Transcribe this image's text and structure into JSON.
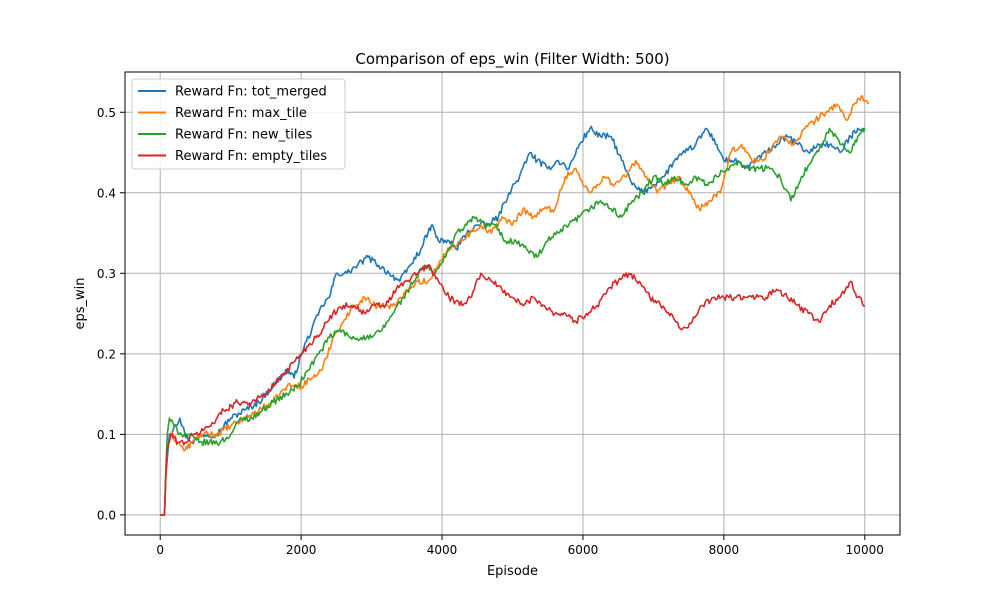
{
  "chart_data": {
    "type": "line",
    "title": "Comparison of eps_win (Filter Width: 500)",
    "xlabel": "Episode",
    "ylabel": "eps_win",
    "xlim": [
      -500,
      10500
    ],
    "ylim": [
      -0.025,
      0.55
    ],
    "xticks": [
      0,
      2000,
      4000,
      6000,
      8000,
      10000
    ],
    "yticks": [
      0.0,
      0.1,
      0.2,
      0.3,
      0.4,
      0.5
    ],
    "xtick_labels": [
      "0",
      "2000",
      "4000",
      "6000",
      "8000",
      "10000"
    ],
    "ytick_labels": [
      "0.0",
      "0.1",
      "0.2",
      "0.3",
      "0.4",
      "0.5"
    ],
    "grid": true,
    "legend_position": "top-left",
    "series": [
      {
        "name": "Reward Fn: tot_merged",
        "color": "#1f77b4",
        "points": [
          [
            0,
            0.0
          ],
          [
            60,
            0.0
          ],
          [
            80,
            0.05
          ],
          [
            100,
            0.07
          ],
          [
            130,
            0.1
          ],
          [
            200,
            0.11
          ],
          [
            280,
            0.12
          ],
          [
            350,
            0.1
          ],
          [
            450,
            0.09
          ],
          [
            600,
            0.1
          ],
          [
            800,
            0.1
          ],
          [
            1000,
            0.12
          ],
          [
            1200,
            0.13
          ],
          [
            1400,
            0.14
          ],
          [
            1600,
            0.16
          ],
          [
            1800,
            0.18
          ],
          [
            1900,
            0.17
          ],
          [
            2000,
            0.2
          ],
          [
            2150,
            0.23
          ],
          [
            2300,
            0.26
          ],
          [
            2400,
            0.27
          ],
          [
            2500,
            0.3
          ],
          [
            2650,
            0.3
          ],
          [
            2800,
            0.31
          ],
          [
            2950,
            0.32
          ],
          [
            3100,
            0.31
          ],
          [
            3250,
            0.3
          ],
          [
            3400,
            0.29
          ],
          [
            3550,
            0.31
          ],
          [
            3700,
            0.33
          ],
          [
            3800,
            0.35
          ],
          [
            3850,
            0.36
          ],
          [
            3950,
            0.34
          ],
          [
            4100,
            0.34
          ],
          [
            4200,
            0.33
          ],
          [
            4350,
            0.35
          ],
          [
            4500,
            0.36
          ],
          [
            4650,
            0.36
          ],
          [
            4800,
            0.37
          ],
          [
            4950,
            0.4
          ],
          [
            5100,
            0.42
          ],
          [
            5250,
            0.45
          ],
          [
            5350,
            0.44
          ],
          [
            5500,
            0.43
          ],
          [
            5650,
            0.44
          ],
          [
            5800,
            0.43
          ],
          [
            5950,
            0.46
          ],
          [
            6100,
            0.48
          ],
          [
            6250,
            0.47
          ],
          [
            6400,
            0.47
          ],
          [
            6550,
            0.44
          ],
          [
            6700,
            0.41
          ],
          [
            6850,
            0.4
          ],
          [
            7000,
            0.41
          ],
          [
            7150,
            0.42
          ],
          [
            7300,
            0.44
          ],
          [
            7450,
            0.45
          ],
          [
            7600,
            0.46
          ],
          [
            7750,
            0.48
          ],
          [
            7900,
            0.46
          ],
          [
            8000,
            0.44
          ],
          [
            8150,
            0.44
          ],
          [
            8300,
            0.43
          ],
          [
            8450,
            0.44
          ],
          [
            8600,
            0.45
          ],
          [
            8750,
            0.46
          ],
          [
            8900,
            0.47
          ],
          [
            9050,
            0.46
          ],
          [
            9200,
            0.45
          ],
          [
            9350,
            0.46
          ],
          [
            9500,
            0.46
          ],
          [
            9650,
            0.45
          ],
          [
            9800,
            0.47
          ],
          [
            9900,
            0.48
          ],
          [
            10000,
            0.48
          ]
        ]
      },
      {
        "name": "Reward Fn: max_tile",
        "color": "#ff7f0e",
        "points": [
          [
            0,
            0.0
          ],
          [
            60,
            0.0
          ],
          [
            80,
            0.05
          ],
          [
            100,
            0.08
          ],
          [
            150,
            0.1
          ],
          [
            250,
            0.09
          ],
          [
            350,
            0.08
          ],
          [
            450,
            0.09
          ],
          [
            600,
            0.1
          ],
          [
            800,
            0.1
          ],
          [
            1000,
            0.11
          ],
          [
            1200,
            0.12
          ],
          [
            1400,
            0.13
          ],
          [
            1600,
            0.14
          ],
          [
            1800,
            0.16
          ],
          [
            2000,
            0.16
          ],
          [
            2150,
            0.17
          ],
          [
            2300,
            0.18
          ],
          [
            2450,
            0.22
          ],
          [
            2600,
            0.24
          ],
          [
            2750,
            0.26
          ],
          [
            2900,
            0.27
          ],
          [
            3050,
            0.26
          ],
          [
            3200,
            0.26
          ],
          [
            3350,
            0.26
          ],
          [
            3500,
            0.28
          ],
          [
            3650,
            0.29
          ],
          [
            3800,
            0.29
          ],
          [
            3950,
            0.31
          ],
          [
            4100,
            0.33
          ],
          [
            4250,
            0.34
          ],
          [
            4400,
            0.35
          ],
          [
            4550,
            0.36
          ],
          [
            4700,
            0.35
          ],
          [
            4850,
            0.37
          ],
          [
            5000,
            0.36
          ],
          [
            5150,
            0.38
          ],
          [
            5300,
            0.37
          ],
          [
            5450,
            0.38
          ],
          [
            5600,
            0.38
          ],
          [
            5750,
            0.42
          ],
          [
            5900,
            0.43
          ],
          [
            6000,
            0.41
          ],
          [
            6100,
            0.4
          ],
          [
            6200,
            0.41
          ],
          [
            6300,
            0.42
          ],
          [
            6450,
            0.41
          ],
          [
            6600,
            0.42
          ],
          [
            6750,
            0.44
          ],
          [
            6900,
            0.42
          ],
          [
            7050,
            0.4
          ],
          [
            7200,
            0.41
          ],
          [
            7350,
            0.42
          ],
          [
            7500,
            0.4
          ],
          [
            7650,
            0.38
          ],
          [
            7800,
            0.39
          ],
          [
            7950,
            0.4
          ],
          [
            8100,
            0.45
          ],
          [
            8250,
            0.46
          ],
          [
            8400,
            0.44
          ],
          [
            8550,
            0.44
          ],
          [
            8700,
            0.46
          ],
          [
            8850,
            0.47
          ],
          [
            9000,
            0.46
          ],
          [
            9150,
            0.48
          ],
          [
            9300,
            0.49
          ],
          [
            9450,
            0.5
          ],
          [
            9600,
            0.51
          ],
          [
            9750,
            0.49
          ],
          [
            9850,
            0.51
          ],
          [
            9950,
            0.52
          ],
          [
            10050,
            0.51
          ]
        ]
      },
      {
        "name": "Reward Fn: new_tiles",
        "color": "#2ca02c",
        "points": [
          [
            0,
            0.0
          ],
          [
            60,
            0.0
          ],
          [
            80,
            0.06
          ],
          [
            100,
            0.1
          ],
          [
            130,
            0.12
          ],
          [
            200,
            0.11
          ],
          [
            300,
            0.1
          ],
          [
            400,
            0.1
          ],
          [
            550,
            0.09
          ],
          [
            700,
            0.09
          ],
          [
            850,
            0.09
          ],
          [
            1000,
            0.1
          ],
          [
            1150,
            0.12
          ],
          [
            1300,
            0.12
          ],
          [
            1450,
            0.13
          ],
          [
            1600,
            0.14
          ],
          [
            1800,
            0.15
          ],
          [
            1950,
            0.16
          ],
          [
            2100,
            0.18
          ],
          [
            2250,
            0.2
          ],
          [
            2400,
            0.22
          ],
          [
            2550,
            0.23
          ],
          [
            2700,
            0.22
          ],
          [
            2850,
            0.22
          ],
          [
            3000,
            0.22
          ],
          [
            3150,
            0.23
          ],
          [
            3300,
            0.25
          ],
          [
            3450,
            0.27
          ],
          [
            3600,
            0.29
          ],
          [
            3750,
            0.31
          ],
          [
            3900,
            0.3
          ],
          [
            4050,
            0.32
          ],
          [
            4200,
            0.35
          ],
          [
            4350,
            0.36
          ],
          [
            4450,
            0.37
          ],
          [
            4600,
            0.36
          ],
          [
            4750,
            0.36
          ],
          [
            4900,
            0.34
          ],
          [
            5050,
            0.34
          ],
          [
            5200,
            0.33
          ],
          [
            5350,
            0.32
          ],
          [
            5500,
            0.34
          ],
          [
            5650,
            0.35
          ],
          [
            5800,
            0.36
          ],
          [
            5950,
            0.37
          ],
          [
            6100,
            0.38
          ],
          [
            6250,
            0.39
          ],
          [
            6400,
            0.38
          ],
          [
            6550,
            0.37
          ],
          [
            6700,
            0.39
          ],
          [
            6850,
            0.4
          ],
          [
            7000,
            0.42
          ],
          [
            7150,
            0.41
          ],
          [
            7300,
            0.42
          ],
          [
            7450,
            0.41
          ],
          [
            7600,
            0.42
          ],
          [
            7750,
            0.41
          ],
          [
            7900,
            0.42
          ],
          [
            8050,
            0.43
          ],
          [
            8200,
            0.44
          ],
          [
            8350,
            0.43
          ],
          [
            8500,
            0.43
          ],
          [
            8650,
            0.43
          ],
          [
            8800,
            0.42
          ],
          [
            8950,
            0.39
          ],
          [
            9100,
            0.42
          ],
          [
            9250,
            0.44
          ],
          [
            9400,
            0.46
          ],
          [
            9500,
            0.48
          ],
          [
            9650,
            0.46
          ],
          [
            9800,
            0.45
          ],
          [
            9900,
            0.47
          ],
          [
            10000,
            0.48
          ]
        ]
      },
      {
        "name": "Reward Fn: empty_tiles",
        "color": "#d62728",
        "points": [
          [
            0,
            0.0
          ],
          [
            60,
            0.0
          ],
          [
            80,
            0.05
          ],
          [
            100,
            0.08
          ],
          [
            150,
            0.1
          ],
          [
            250,
            0.09
          ],
          [
            350,
            0.09
          ],
          [
            500,
            0.1
          ],
          [
            700,
            0.11
          ],
          [
            900,
            0.13
          ],
          [
            1100,
            0.14
          ],
          [
            1300,
            0.14
          ],
          [
            1500,
            0.15
          ],
          [
            1700,
            0.17
          ],
          [
            1900,
            0.19
          ],
          [
            2100,
            0.21
          ],
          [
            2300,
            0.23
          ],
          [
            2450,
            0.25
          ],
          [
            2600,
            0.26
          ],
          [
            2750,
            0.26
          ],
          [
            2900,
            0.25
          ],
          [
            3050,
            0.26
          ],
          [
            3200,
            0.26
          ],
          [
            3350,
            0.28
          ],
          [
            3500,
            0.29
          ],
          [
            3650,
            0.3
          ],
          [
            3800,
            0.31
          ],
          [
            3950,
            0.29
          ],
          [
            4100,
            0.27
          ],
          [
            4250,
            0.26
          ],
          [
            4400,
            0.27
          ],
          [
            4550,
            0.3
          ],
          [
            4700,
            0.29
          ],
          [
            4850,
            0.28
          ],
          [
            5000,
            0.27
          ],
          [
            5150,
            0.26
          ],
          [
            5300,
            0.27
          ],
          [
            5450,
            0.26
          ],
          [
            5600,
            0.25
          ],
          [
            5750,
            0.25
          ],
          [
            5900,
            0.24
          ],
          [
            6050,
            0.25
          ],
          [
            6200,
            0.26
          ],
          [
            6350,
            0.28
          ],
          [
            6500,
            0.29
          ],
          [
            6650,
            0.3
          ],
          [
            6800,
            0.29
          ],
          [
            6950,
            0.27
          ],
          [
            7100,
            0.26
          ],
          [
            7250,
            0.25
          ],
          [
            7400,
            0.23
          ],
          [
            7550,
            0.24
          ],
          [
            7700,
            0.26
          ],
          [
            7850,
            0.27
          ],
          [
            8000,
            0.27
          ],
          [
            8150,
            0.27
          ],
          [
            8300,
            0.27
          ],
          [
            8450,
            0.27
          ],
          [
            8600,
            0.27
          ],
          [
            8750,
            0.28
          ],
          [
            8900,
            0.27
          ],
          [
            9050,
            0.26
          ],
          [
            9200,
            0.25
          ],
          [
            9350,
            0.24
          ],
          [
            9500,
            0.26
          ],
          [
            9650,
            0.27
          ],
          [
            9800,
            0.29
          ],
          [
            9900,
            0.27
          ],
          [
            10000,
            0.26
          ]
        ]
      }
    ]
  }
}
